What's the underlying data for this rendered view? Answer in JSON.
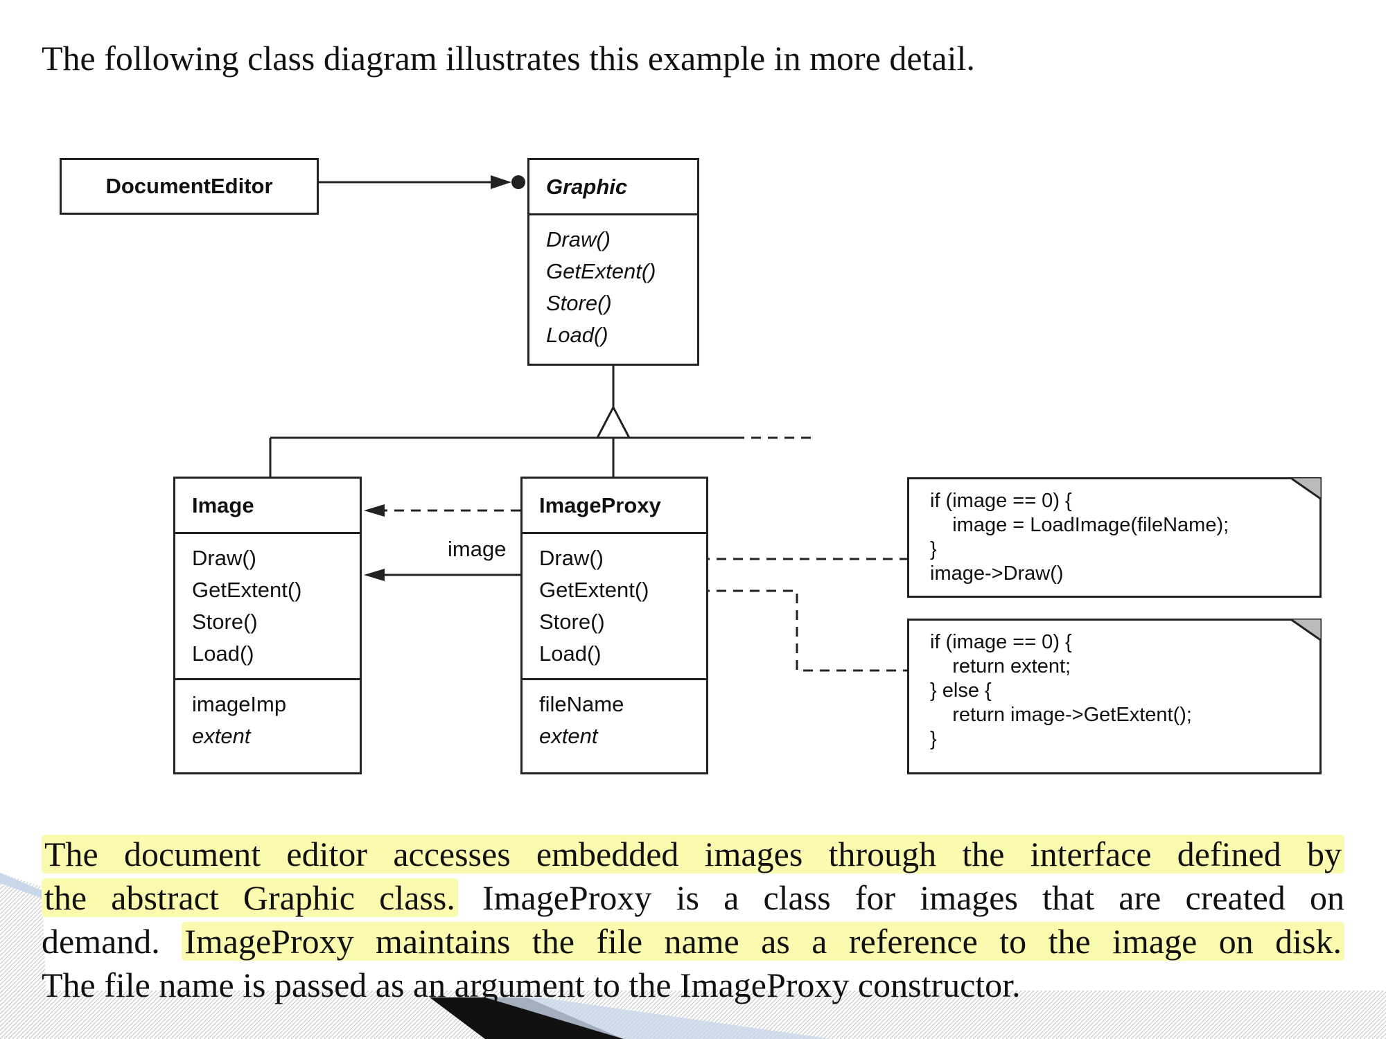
{
  "intro_text": "The following class diagram illustrates this example in more detail.",
  "classes": {
    "document_editor": {
      "name": "DocumentEditor"
    },
    "graphic": {
      "name": "Graphic",
      "operations": [
        "Draw()",
        "GetExtent()",
        "Store()",
        "Load()"
      ]
    },
    "image": {
      "name": "Image",
      "operations": [
        "Draw()",
        "GetExtent()",
        "Store()",
        "Load()"
      ],
      "attributes": [
        "imageImp",
        "extent"
      ]
    },
    "image_proxy": {
      "name": "ImageProxy",
      "operations": [
        "Draw()",
        "GetExtent()",
        "Store()",
        "Load()"
      ],
      "attributes": [
        "fileName",
        "extent"
      ]
    }
  },
  "association_label": "image",
  "notes": {
    "draw": [
      "if (image == 0) {",
      "    image = LoadImage(fileName);",
      "}",
      "image->Draw()"
    ],
    "get_extent": [
      "if (image == 0) {",
      "    return extent;",
      "} else {",
      "    return image->GetExtent();",
      "}"
    ]
  },
  "paragraph": {
    "line1": "The document editor accesses embedded images through the interface defined by",
    "line2_highlight": "the abstract Graphic class.",
    "line2_rest": " ImageProxy is a class for images that are created on",
    "line3_start": "demand.",
    "line3_highlight": "ImageProxy maintains the file name as a reference to the image on disk.",
    "line4": "The file name is passed as an argument to the ImageProxy constructor."
  },
  "colors": {
    "highlight": "#fbfbb0",
    "line": "#222222",
    "decor_dark": "#111111",
    "decor_light": "#c9d7ea"
  }
}
